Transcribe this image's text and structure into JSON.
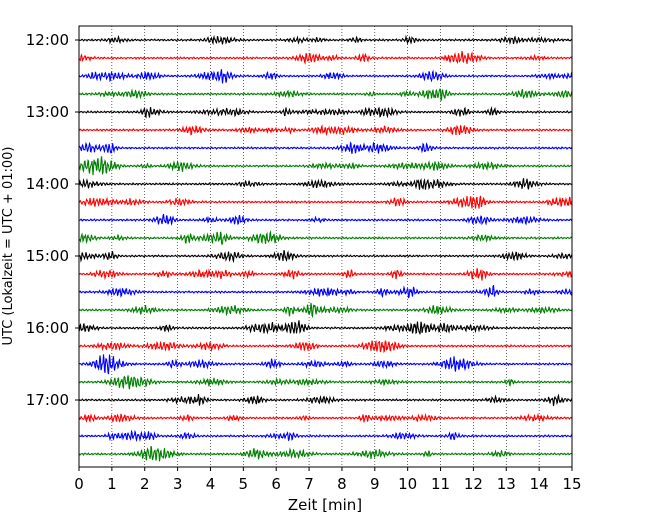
{
  "chart_data": {
    "type": "line",
    "title": "",
    "xlabel": "Zeit  [min]",
    "ylabel": "UTC (Lokalzeit = UTC + 01:00)",
    "xlim": [
      0,
      15
    ],
    "x_ticks": [
      0,
      1,
      2,
      3,
      4,
      5,
      6,
      7,
      8,
      9,
      10,
      11,
      12,
      13,
      14,
      15
    ],
    "grid": "vertical dotted",
    "legend": "none",
    "row_interval_minutes": 15,
    "hour_labels": [
      "12:00",
      "13:00",
      "14:00",
      "15:00",
      "16:00",
      "17:00"
    ],
    "series_colors": [
      "#000000",
      "#ff0000",
      "#0000ff",
      "#008000"
    ],
    "rows": [
      {
        "start": "12:00",
        "color": "#000000"
      },
      {
        "start": "12:15",
        "color": "#ff0000"
      },
      {
        "start": "12:30",
        "color": "#0000ff"
      },
      {
        "start": "12:45",
        "color": "#008000"
      },
      {
        "start": "13:00",
        "color": "#000000"
      },
      {
        "start": "13:15",
        "color": "#ff0000"
      },
      {
        "start": "13:30",
        "color": "#0000ff"
      },
      {
        "start": "13:45",
        "color": "#008000"
      },
      {
        "start": "14:00",
        "color": "#000000"
      },
      {
        "start": "14:15",
        "color": "#ff0000"
      },
      {
        "start": "14:30",
        "color": "#0000ff"
      },
      {
        "start": "14:45",
        "color": "#008000"
      },
      {
        "start": "15:00",
        "color": "#000000"
      },
      {
        "start": "15:15",
        "color": "#ff0000"
      },
      {
        "start": "15:30",
        "color": "#0000ff"
      },
      {
        "start": "15:45",
        "color": "#008000"
      },
      {
        "start": "16:00",
        "color": "#000000"
      },
      {
        "start": "16:15",
        "color": "#ff0000"
      },
      {
        "start": "16:30",
        "color": "#0000ff"
      },
      {
        "start": "16:45",
        "color": "#008000"
      },
      {
        "start": "17:00",
        "color": "#000000"
      },
      {
        "start": "17:15",
        "color": "#ff0000"
      },
      {
        "start": "17:30",
        "color": "#0000ff"
      },
      {
        "start": "17:45",
        "color": "#008000"
      }
    ]
  }
}
